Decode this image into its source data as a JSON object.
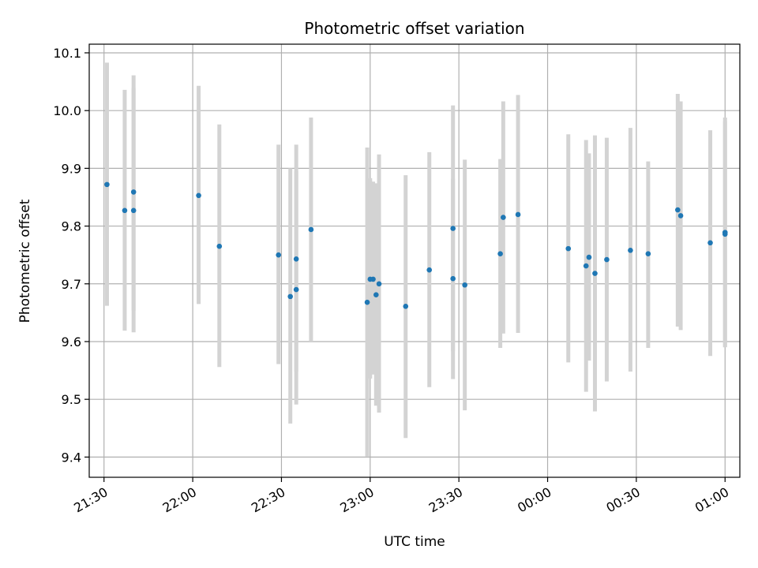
{
  "chart_data": {
    "type": "scatter",
    "title": "Photometric offset variation",
    "xlabel": "UTC time",
    "ylabel": "Photometric offset",
    "x_unit": "UTC time (HH:MM)",
    "x_range": [
      "21:25",
      "01:05"
    ],
    "ylim": [
      9.365,
      10.115
    ],
    "grid": true,
    "y_ticks": [
      "9.4",
      "9.5",
      "9.6",
      "9.7",
      "9.8",
      "9.9",
      "10.0",
      "10.1"
    ],
    "x_ticks": [
      "21:30",
      "22:00",
      "22:30",
      "23:00",
      "23:30",
      "00:00",
      "00:30",
      "01:00"
    ],
    "colors": {
      "point": "#1f77b4",
      "errorbar": "#d3d3d3",
      "grid": "#b0b0b0"
    },
    "series": [
      {
        "points": [
          {
            "x": "21:31",
            "y": 9.872,
            "err_low": 9.662,
            "err_high": 10.083
          },
          {
            "x": "21:37",
            "y": 9.827,
            "err_low": 9.619,
            "err_high": 10.036
          },
          {
            "x": "21:40",
            "y": 9.859,
            "err_low": 9.654,
            "err_high": 10.061
          },
          {
            "x": "21:40",
            "y": 9.827,
            "err_low": 9.616,
            "err_high": 10.039
          },
          {
            "x": "22:02",
            "y": 9.853,
            "err_low": 9.665,
            "err_high": 10.043
          },
          {
            "x": "22:09",
            "y": 9.765,
            "err_low": 9.556,
            "err_high": 9.976
          },
          {
            "x": "22:29",
            "y": 9.75,
            "err_low": 9.561,
            "err_high": 9.941
          },
          {
            "x": "22:33",
            "y": 9.678,
            "err_low": 9.458,
            "err_high": 9.9
          },
          {
            "x": "22:35",
            "y": 9.69,
            "err_low": 9.491,
            "err_high": 9.895
          },
          {
            "x": "22:35",
            "y": 9.743,
            "err_low": 9.548,
            "err_high": 9.941
          },
          {
            "x": "22:40",
            "y": 9.794,
            "err_low": 9.6,
            "err_high": 9.988
          },
          {
            "x": "22:59",
            "y": 9.668,
            "err_low": 9.401,
            "err_high": 9.936
          },
          {
            "x": "23:00",
            "y": 9.708,
            "err_low": 9.536,
            "err_high": 9.883
          },
          {
            "x": "23:01",
            "y": 9.708,
            "err_low": 9.543,
            "err_high": 9.877
          },
          {
            "x": "23:02",
            "y": 9.681,
            "err_low": 9.489,
            "err_high": 9.874
          },
          {
            "x": "23:03",
            "y": 9.7,
            "err_low": 9.477,
            "err_high": 9.924
          },
          {
            "x": "23:12",
            "y": 9.661,
            "err_low": 9.433,
            "err_high": 9.888
          },
          {
            "x": "23:20",
            "y": 9.724,
            "err_low": 9.521,
            "err_high": 9.928
          },
          {
            "x": "23:28",
            "y": 9.709,
            "err_low": 9.535,
            "err_high": 9.882
          },
          {
            "x": "23:28",
            "y": 9.796,
            "err_low": 9.583,
            "err_high": 10.009
          },
          {
            "x": "23:32",
            "y": 9.698,
            "err_low": 9.481,
            "err_high": 9.915
          },
          {
            "x": "23:44",
            "y": 9.752,
            "err_low": 9.589,
            "err_high": 9.916
          },
          {
            "x": "23:45",
            "y": 9.815,
            "err_low": 9.614,
            "err_high": 10.016
          },
          {
            "x": "23:50",
            "y": 9.82,
            "err_low": 9.615,
            "err_high": 10.027
          },
          {
            "x": "00:07",
            "y": 9.761,
            "err_low": 9.564,
            "err_high": 9.959
          },
          {
            "x": "00:13",
            "y": 9.731,
            "err_low": 9.513,
            "err_high": 9.949
          },
          {
            "x": "00:14",
            "y": 9.746,
            "err_low": 9.567,
            "err_high": 9.926
          },
          {
            "x": "00:16",
            "y": 9.718,
            "err_low": 9.479,
            "err_high": 9.957
          },
          {
            "x": "00:20",
            "y": 9.742,
            "err_low": 9.531,
            "err_high": 9.953
          },
          {
            "x": "00:28",
            "y": 9.758,
            "err_low": 9.548,
            "err_high": 9.97
          },
          {
            "x": "00:34",
            "y": 9.752,
            "err_low": 9.589,
            "err_high": 9.912
          },
          {
            "x": "00:44",
            "y": 9.828,
            "err_low": 9.626,
            "err_high": 10.029
          },
          {
            "x": "00:45",
            "y": 9.818,
            "err_low": 9.62,
            "err_high": 10.016
          },
          {
            "x": "00:55",
            "y": 9.771,
            "err_low": 9.575,
            "err_high": 9.966
          },
          {
            "x": "01:00",
            "y": 9.789,
            "err_low": 9.59,
            "err_high": 9.988
          },
          {
            "x": "01:00",
            "y": 9.786,
            "err_low": 9.591,
            "err_high": 9.981
          }
        ]
      }
    ]
  }
}
